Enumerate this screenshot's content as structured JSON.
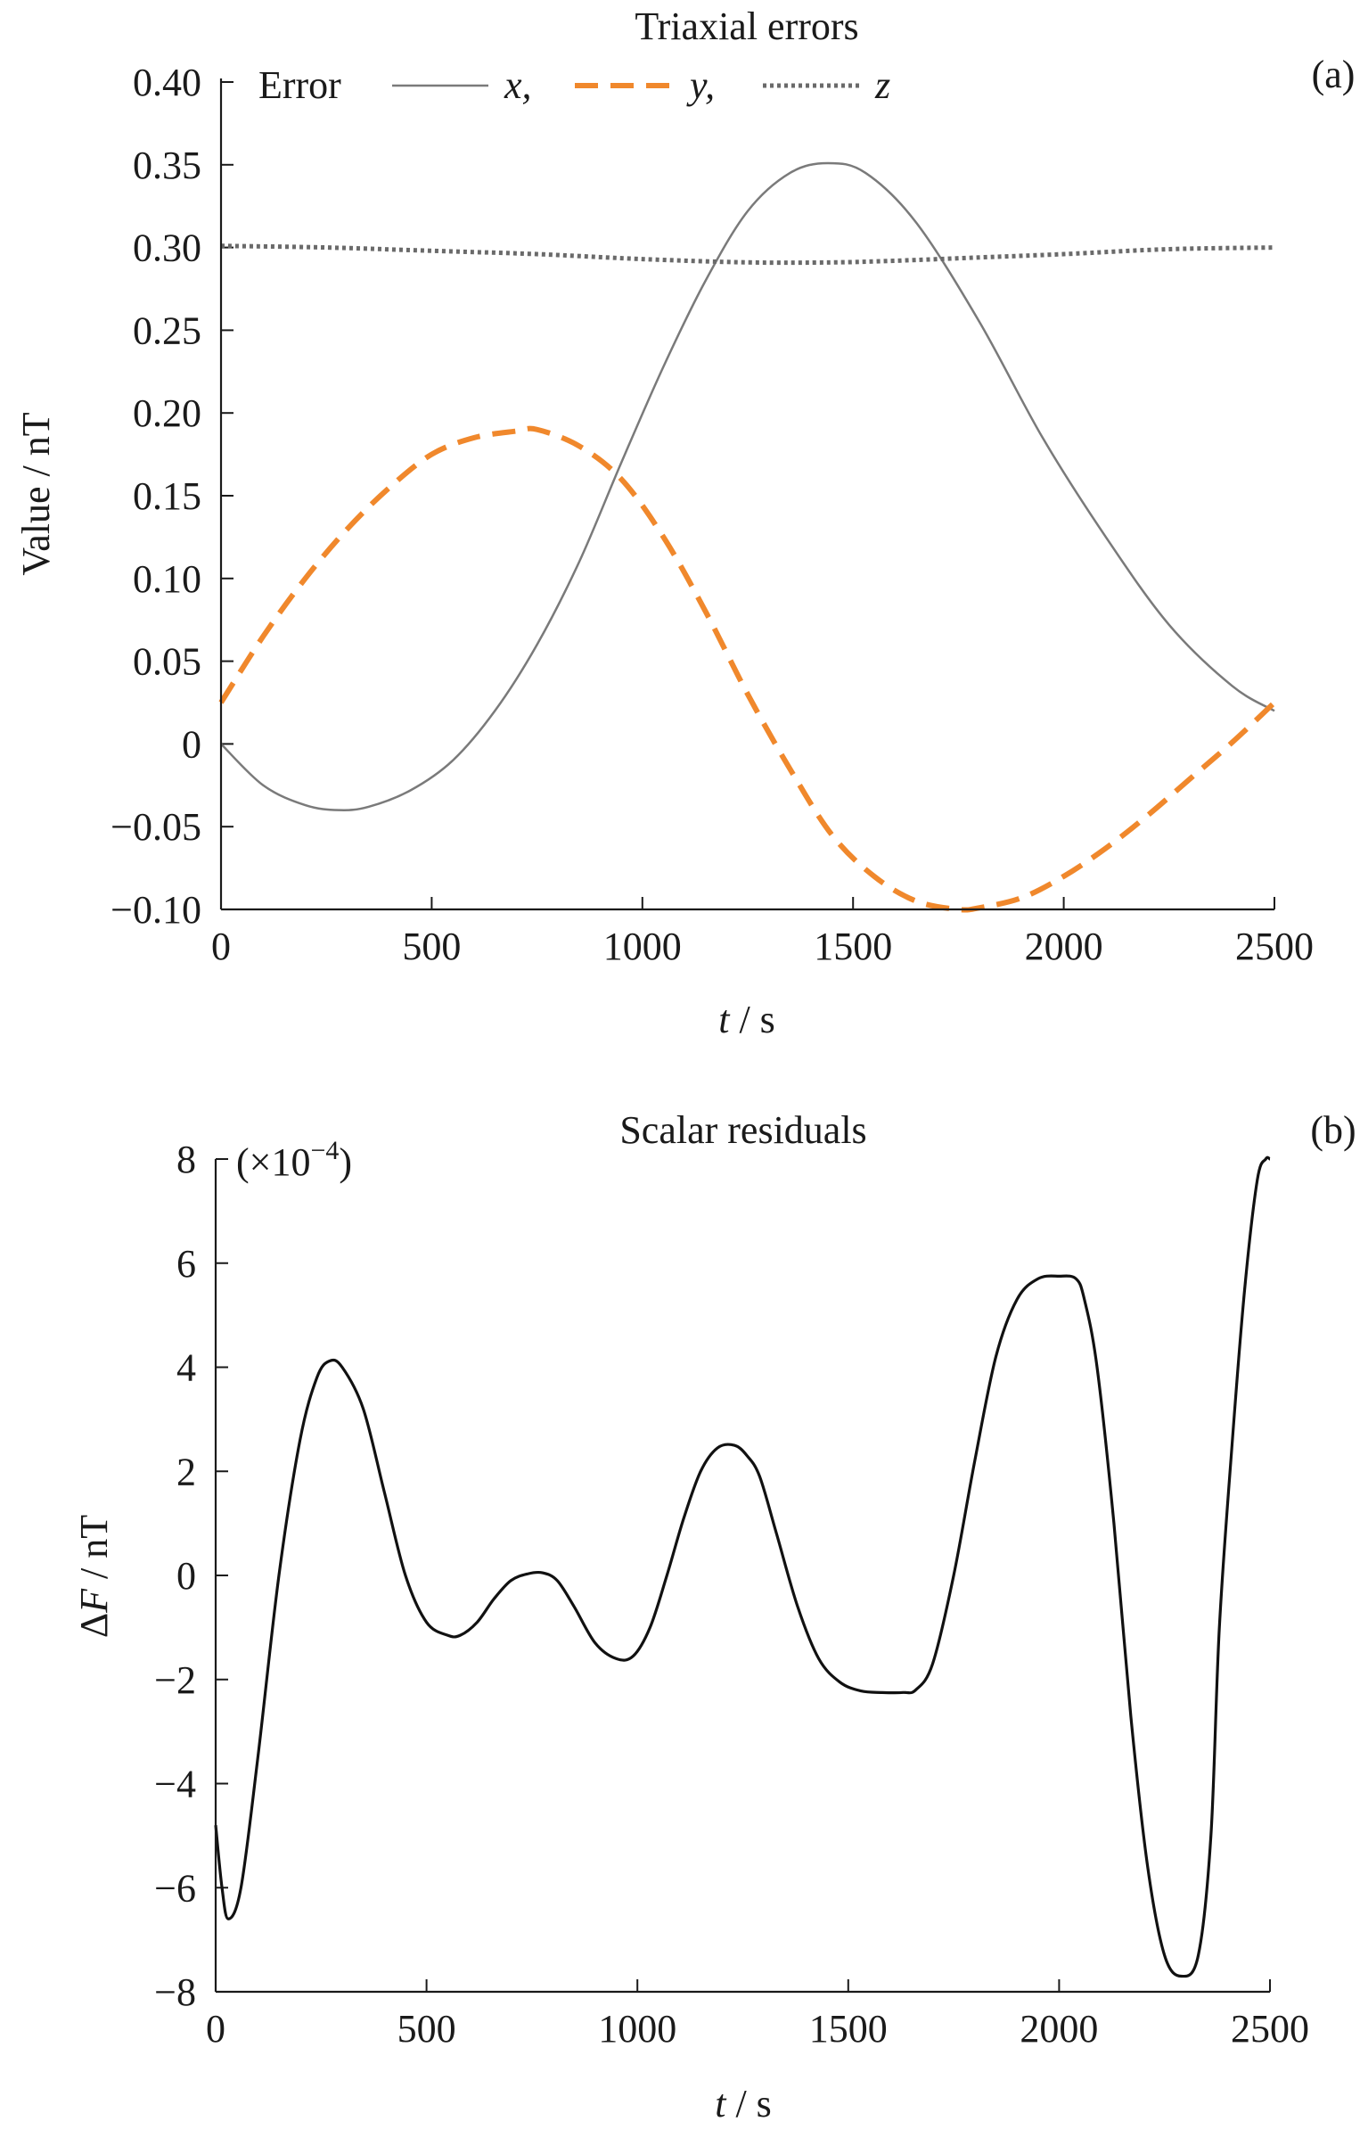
{
  "chart_data": [
    {
      "panel": "(a)",
      "type": "line",
      "title": "Triaxial errors",
      "xlabel": "t / s",
      "xlabel_var": "t",
      "xlabel_unit": " / s",
      "ylabel": "Value / nT",
      "xlim": [
        0,
        2500
      ],
      "ylim": [
        -0.1,
        0.4
      ],
      "xticks": [
        0,
        500,
        1000,
        1500,
        2000,
        2500
      ],
      "xtick_labels": [
        "0",
        "500",
        "1000",
        "1500",
        "2000",
        "2500"
      ],
      "yticks": [
        0.4,
        0.35,
        0.3,
        0.25,
        0.2,
        0.15,
        0.1,
        0.05,
        0,
        -0.05,
        -0.1
      ],
      "ytick_labels": [
        "0.40",
        "0.35",
        "0.30",
        "0.25",
        "0.20",
        "0.15",
        "0.10",
        "0.05",
        "0",
        "−0.05",
        "−0.10"
      ],
      "grid": false,
      "legend_title": "Error",
      "legend_position": "top",
      "series": [
        {
          "name": "x",
          "legend_label": "x,",
          "style": "solid",
          "color": "#7a7a7a",
          "x": [
            0,
            100,
            200,
            280,
            350,
            450,
            550,
            650,
            750,
            850,
            950,
            1050,
            1150,
            1250,
            1350,
            1440,
            1530,
            1650,
            1800,
            1950,
            2100,
            2250,
            2400,
            2500
          ],
          "y": [
            0.0,
            -0.025,
            -0.037,
            -0.04,
            -0.038,
            -0.028,
            -0.01,
            0.02,
            0.06,
            0.11,
            0.17,
            0.228,
            0.28,
            0.322,
            0.345,
            0.351,
            0.345,
            0.315,
            0.255,
            0.185,
            0.125,
            0.072,
            0.035,
            0.02
          ]
        },
        {
          "name": "y",
          "legend_label": "y,",
          "style": "dashed",
          "color": "#f0882c",
          "x": [
            0,
            100,
            200,
            300,
            400,
            500,
            600,
            700,
            750,
            850,
            950,
            1050,
            1150,
            1250,
            1350,
            1450,
            1550,
            1650,
            1750,
            1800,
            1900,
            2000,
            2100,
            2200,
            2300,
            2400,
            2500
          ],
          "y": [
            0.025,
            0.065,
            0.1,
            0.13,
            0.155,
            0.175,
            0.185,
            0.189,
            0.19,
            0.18,
            0.16,
            0.125,
            0.08,
            0.03,
            -0.015,
            -0.055,
            -0.08,
            -0.095,
            -0.1,
            -0.099,
            -0.093,
            -0.08,
            -0.063,
            -0.043,
            -0.021,
            0.001,
            0.025
          ]
        },
        {
          "name": "z",
          "legend_label": "z",
          "style": "dotted",
          "color": "#6a6a6a",
          "x": [
            0,
            250,
            500,
            750,
            1000,
            1250,
            1450,
            1600,
            1800,
            2000,
            2250,
            2500
          ],
          "y": [
            0.301,
            0.3,
            0.298,
            0.296,
            0.293,
            0.291,
            0.291,
            0.292,
            0.294,
            0.296,
            0.299,
            0.3
          ]
        }
      ]
    },
    {
      "panel": "(b)",
      "type": "line",
      "title": "Scalar residuals",
      "xlabel": "t / s",
      "xlabel_var": "t",
      "xlabel_unit": " / s",
      "ylabel": "ΔF / nT",
      "ylabel_prefix": "Δ",
      "ylabel_var": "F",
      "ylabel_unit": " / nT",
      "scale_note": "(×10",
      "scale_exp": "−4",
      "scale_close": ")",
      "xlim": [
        0,
        2500
      ],
      "ylim": [
        -8,
        8
      ],
      "xticks": [
        0,
        500,
        1000,
        1500,
        2000,
        2500
      ],
      "xtick_labels": [
        "0",
        "500",
        "1000",
        "1500",
        "2000",
        "2500"
      ],
      "yticks": [
        8,
        6,
        4,
        2,
        0,
        -2,
        -4,
        -6,
        -8
      ],
      "ytick_labels": [
        "8",
        "6",
        "4",
        "2",
        "0",
        "−2",
        "−4",
        "−6",
        "−8"
      ],
      "grid": false,
      "series": [
        {
          "name": "",
          "style": "solid",
          "color": "#111111",
          "x": [
            0,
            15,
            30,
            60,
            100,
            150,
            200,
            240,
            270,
            300,
            350,
            400,
            450,
            500,
            550,
            580,
            620,
            660,
            700,
            740,
            775,
            810,
            850,
            900,
            950,
            990,
            1030,
            1070,
            1110,
            1150,
            1190,
            1230,
            1260,
            1290,
            1330,
            1380,
            1430,
            1480,
            1530,
            1580,
            1630,
            1660,
            1700,
            1750,
            1800,
            1850,
            1900,
            1950,
            2000,
            2040,
            2060,
            2090,
            2130,
            2170,
            2210,
            2250,
            2290,
            2330,
            2360,
            2380,
            2410,
            2440,
            2470,
            2490,
            2500
          ],
          "y": [
            -4.8,
            -6.0,
            -6.6,
            -6.0,
            -3.5,
            0.0,
            2.6,
            3.8,
            4.12,
            4.0,
            3.2,
            1.6,
            0.0,
            -0.9,
            -1.15,
            -1.15,
            -0.9,
            -0.45,
            -0.1,
            0.03,
            0.05,
            -0.1,
            -0.6,
            -1.3,
            -1.6,
            -1.55,
            -1.0,
            0.0,
            1.1,
            2.0,
            2.45,
            2.5,
            2.3,
            1.9,
            0.8,
            -0.6,
            -1.6,
            -2.05,
            -2.22,
            -2.25,
            -2.25,
            -2.2,
            -1.7,
            0.0,
            2.2,
            4.2,
            5.3,
            5.7,
            5.75,
            5.7,
            5.3,
            4.0,
            1.0,
            -2.7,
            -5.6,
            -7.3,
            -7.7,
            -7.3,
            -5.0,
            -1.0,
            2.5,
            5.5,
            7.6,
            8.0,
            8.0
          ]
        }
      ]
    }
  ]
}
